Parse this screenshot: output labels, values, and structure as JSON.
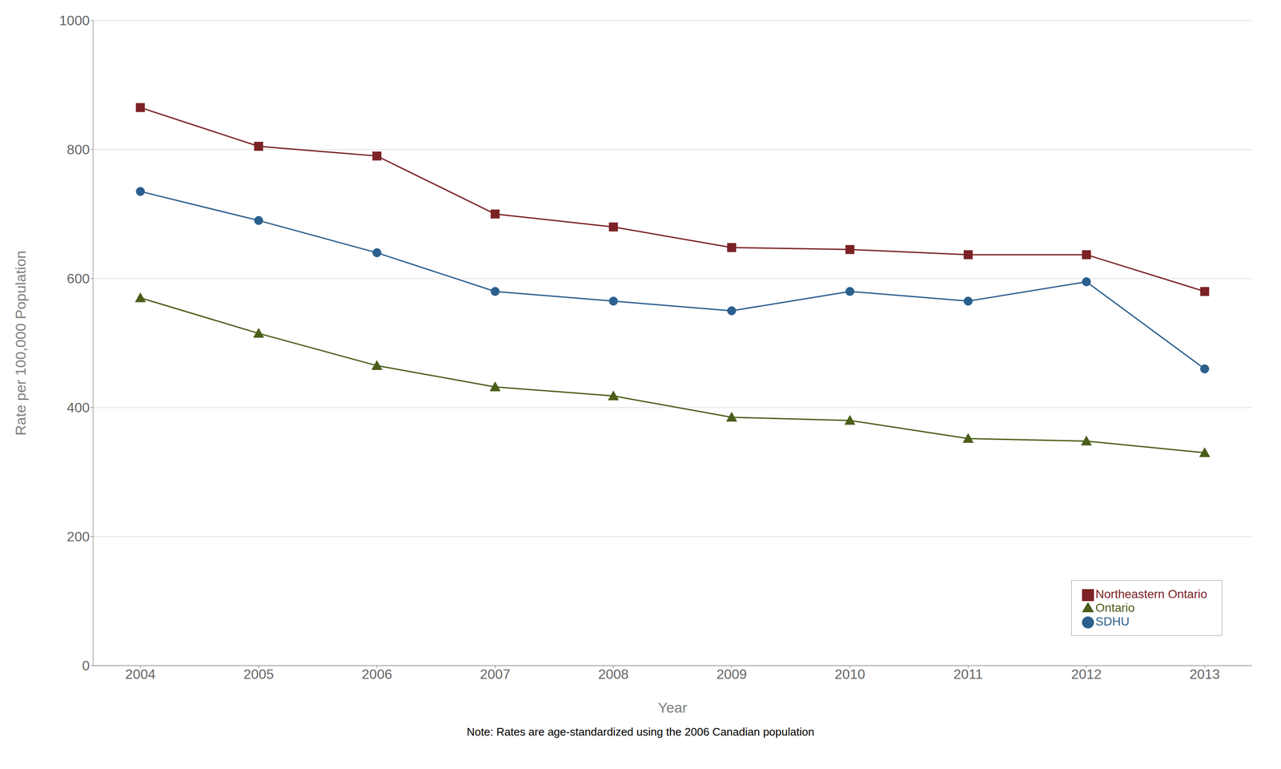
{
  "chart_data": {
    "type": "line",
    "x": [
      2004,
      2005,
      2006,
      2007,
      2008,
      2009,
      2010,
      2011,
      2012,
      2013
    ],
    "xlim": [
      2003.6,
      2013.4
    ],
    "xticks": [
      2004,
      2005,
      2006,
      2007,
      2008,
      2009,
      2010,
      2011,
      2012,
      2013
    ],
    "ylim": [
      0,
      1000
    ],
    "yticks": [
      0,
      200,
      400,
      600,
      800,
      1000
    ],
    "x_label": "Year",
    "y_label": "Rate per 100,000 Population",
    "annotations": [
      "Note: Rates are age-standardized using the 2006 Canadian population"
    ],
    "grid": "y",
    "legend": "lower right",
    "series": [
      {
        "name": "SDHU",
        "color": "#2b5f8e",
        "marker": "circle",
        "values": [
          735,
          690,
          640,
          580,
          565,
          550,
          580,
          565,
          595,
          460
        ]
      },
      {
        "name": "Northeastern Ontario",
        "color": "#7b2226",
        "marker": "square",
        "values": [
          865,
          805,
          790,
          700,
          680,
          648,
          645,
          637,
          637,
          580
        ]
      },
      {
        "name": "Ontario",
        "color": "#4a5e1a",
        "marker": "triangle",
        "values": [
          570,
          515,
          465,
          432,
          418,
          385,
          380,
          352,
          348,
          330
        ]
      }
    ]
  }
}
